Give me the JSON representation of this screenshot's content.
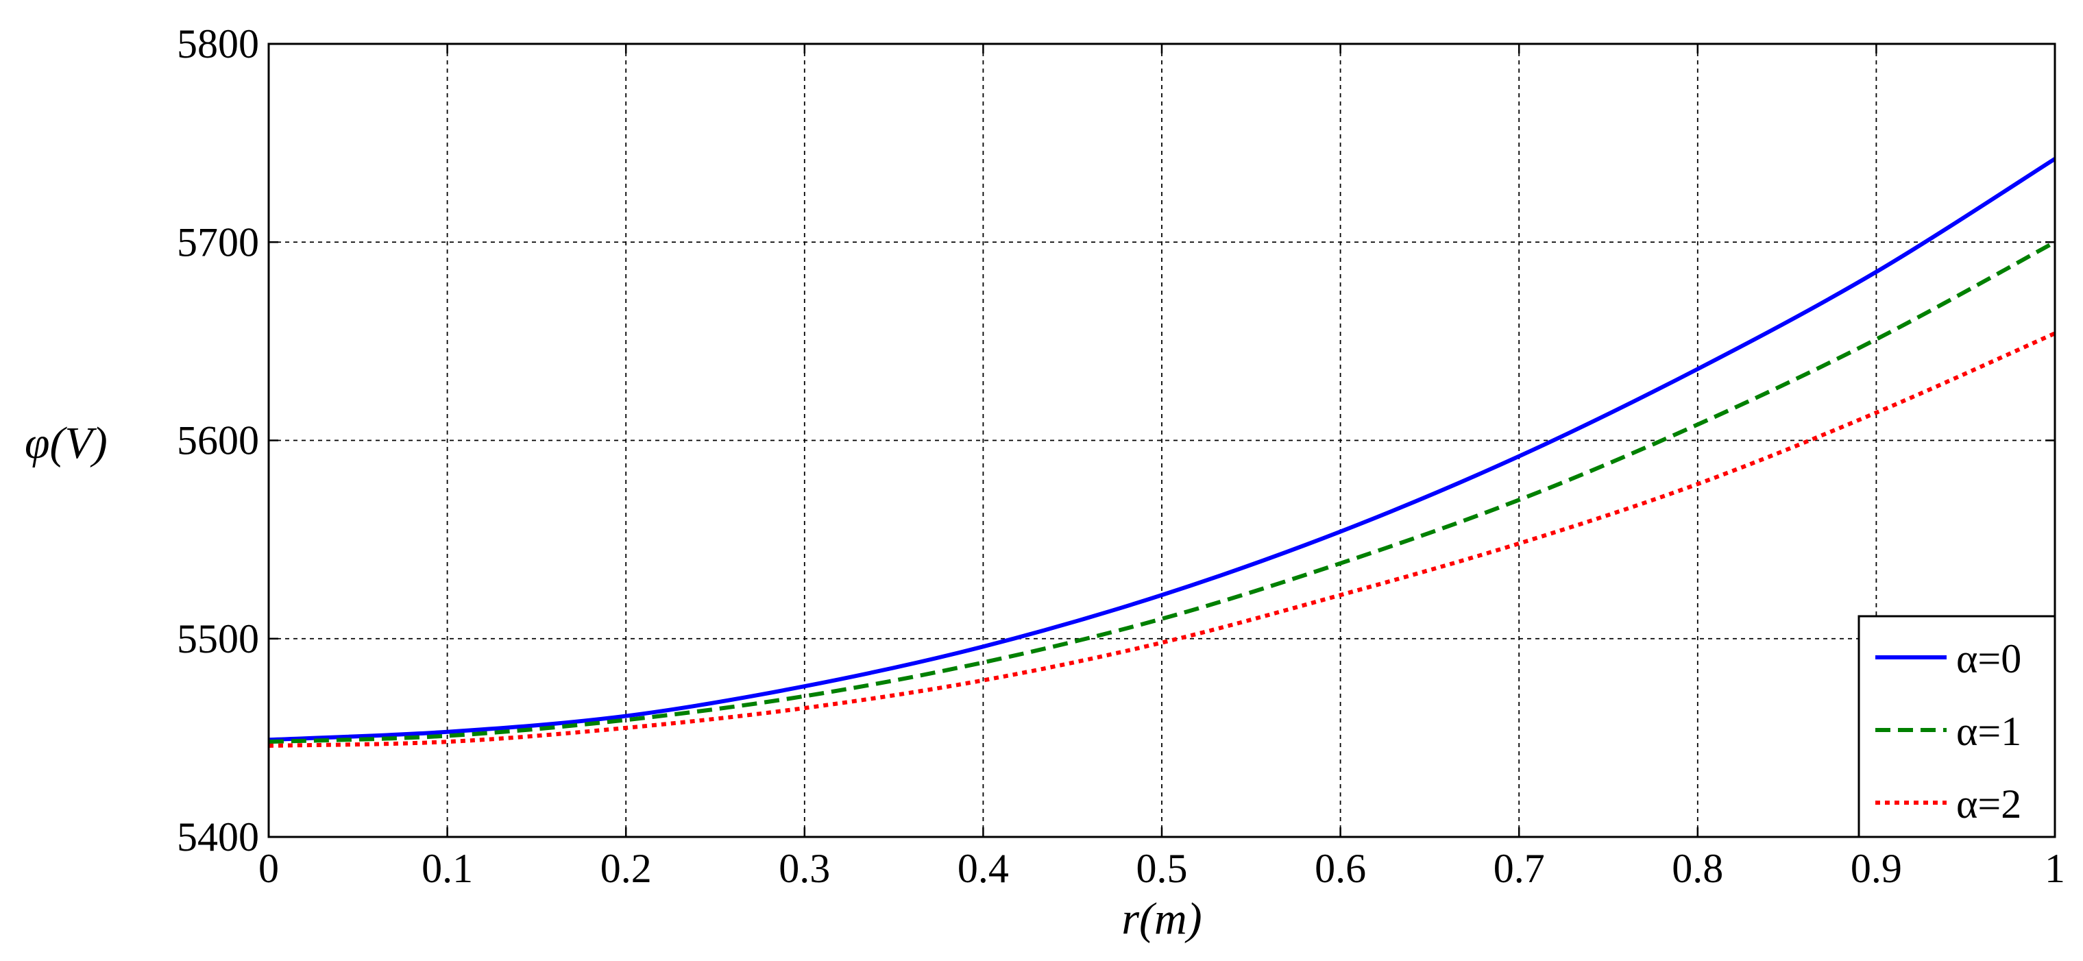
{
  "chart_data": {
    "type": "line",
    "title": "",
    "xlabel": "r(m)",
    "ylabel": "φ(V)",
    "xlim": [
      0,
      1
    ],
    "ylim": [
      5400,
      5800
    ],
    "grid": true,
    "x_ticks": [
      "0",
      "0.1",
      "0.2",
      "0.3",
      "0.4",
      "0.5",
      "0.6",
      "0.7",
      "0.8",
      "0.9",
      "1"
    ],
    "y_ticks": [
      "5400",
      "5500",
      "5600",
      "5700",
      "5800"
    ],
    "x": [
      0,
      0.1,
      0.2,
      0.3,
      0.4,
      0.5,
      0.6,
      0.7,
      0.8,
      0.9,
      1.0
    ],
    "legend_position": "bottom-right",
    "series": [
      {
        "name": "α=0",
        "color": "#0000ff",
        "style": "solid",
        "values": [
          5449,
          5453,
          5461,
          5476,
          5496,
          5522,
          5554,
          5592,
          5636,
          5685,
          5742
        ]
      },
      {
        "name": "α=1",
        "color": "#008000",
        "style": "dashed",
        "values": [
          5448,
          5451,
          5459,
          5471,
          5488,
          5510,
          5538,
          5570,
          5608,
          5651,
          5700
        ]
      },
      {
        "name": "α=2",
        "color": "#ff0000",
        "style": "dotted",
        "values": [
          5446,
          5448,
          5455,
          5465,
          5479,
          5498,
          5522,
          5548,
          5578,
          5614,
          5654
        ]
      }
    ]
  }
}
